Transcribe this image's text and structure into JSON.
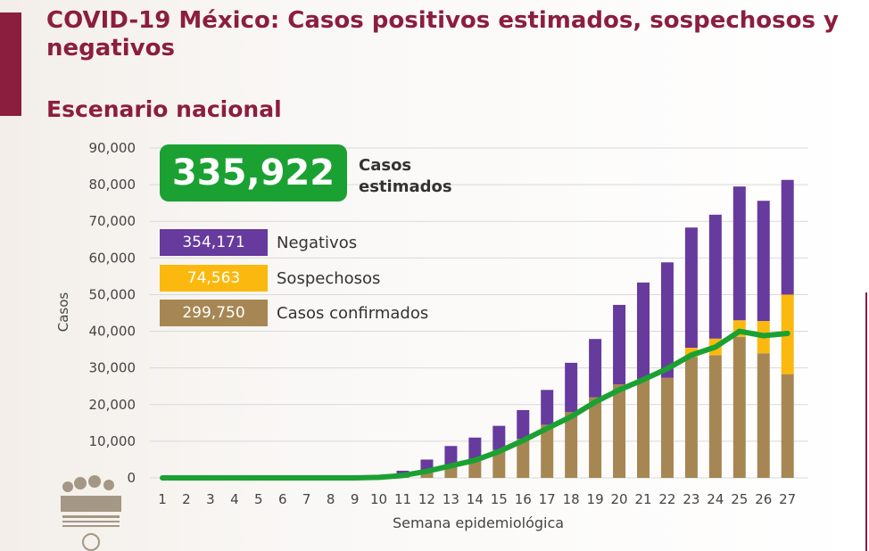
{
  "title": "COVID-19 México: Casos positivos estimados, sospechosos y negativos",
  "subtitle": "Escenario nacional",
  "estimated": {
    "value": "335,922",
    "label": "Casos estimados"
  },
  "legend": [
    {
      "value": "354,171",
      "label": "Negativos",
      "color": "#673a9e"
    },
    {
      "value": "74,563",
      "label": "Sospechosos",
      "color": "#fbb90f"
    },
    {
      "value": "299,750",
      "label": "Casos confirmados",
      "color": "#a68753"
    }
  ],
  "colors": {
    "accent": "#8b1e3f",
    "line": "#1aa132",
    "grid": "#d9d9d9"
  },
  "chart_data": {
    "type": "bar",
    "stacked": true,
    "categories": [
      "1",
      "2",
      "3",
      "4",
      "5",
      "6",
      "7",
      "8",
      "9",
      "10",
      "11",
      "12",
      "13",
      "14",
      "15",
      "16",
      "17",
      "18",
      "19",
      "20",
      "21",
      "22",
      "23",
      "24",
      "25",
      "26",
      "27"
    ],
    "series": [
      {
        "name": "Casos confirmados",
        "values": [
          0,
          0,
          0,
          0,
          0,
          0,
          0,
          0,
          0,
          150,
          650,
          1800,
          3500,
          5100,
          7600,
          10700,
          14500,
          18000,
          22000,
          25500,
          27000,
          27300,
          33000,
          33500,
          38500,
          34000,
          28300
        ]
      },
      {
        "name": "Sospechosos",
        "values": [
          0,
          0,
          0,
          0,
          0,
          0,
          0,
          0,
          0,
          0,
          0,
          0,
          0,
          0,
          0,
          0,
          0,
          0,
          0,
          0,
          0,
          0,
          2500,
          4500,
          4500,
          8800,
          21700
        ]
      },
      {
        "name": "Negativos",
        "values": [
          0,
          0,
          0,
          0,
          0,
          0,
          0,
          0,
          0,
          100,
          1300,
          3200,
          5200,
          5900,
          6600,
          7800,
          9500,
          13400,
          15900,
          21700,
          26300,
          31500,
          32800,
          33800,
          36500,
          32800,
          31300
        ]
      }
    ],
    "line": [
      0,
      0,
      0,
      0,
      0,
      0,
      0,
      0,
      0,
      150,
      650,
      1800,
      3300,
      4800,
      7200,
      10200,
      13500,
      16700,
      20700,
      24000,
      26800,
      29800,
      33500,
      35700,
      40000,
      38800,
      39400
    ],
    "xlabel": "Semana epidemiológica",
    "ylabel": "Casos",
    "ylim": [
      0,
      90000
    ],
    "yticks": [
      "0",
      "10,000",
      "20,000",
      "30,000",
      "40,000",
      "50,000",
      "60,000",
      "70,000",
      "80,000",
      "90,000"
    ],
    "grid": true
  }
}
